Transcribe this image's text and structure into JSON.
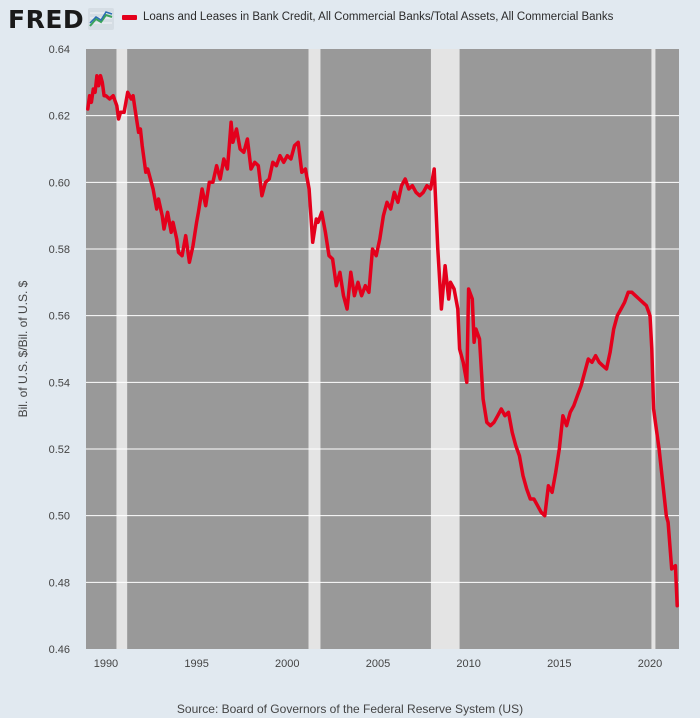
{
  "header": {
    "logo_text": "FRED",
    "logo_mark": "line-chart-icon"
  },
  "colors": {
    "series": "#e4001c",
    "plot_bg": "#999999",
    "recession": "#e4e4e4",
    "page_bg": "#e1e9f0"
  },
  "source": "Source: Board of Governors of the Federal Reserve System (US)",
  "chart_data": {
    "type": "line",
    "title": "",
    "ylabel": "Bil. of U.S. $/Bil. of U.S. $",
    "xlabel": "",
    "ylim": [
      0.46,
      0.64
    ],
    "xlim": [
      1988.9,
      2021.6
    ],
    "yticks": [
      "0.46",
      "0.48",
      "0.50",
      "0.52",
      "0.54",
      "0.56",
      "0.58",
      "0.60",
      "0.62",
      "0.64"
    ],
    "xticks": [
      "1990",
      "1995",
      "2000",
      "2005",
      "2010",
      "2015",
      "2020"
    ],
    "grid": true,
    "legend_position": "top",
    "recessions": [
      [
        1990.58,
        1991.17
      ],
      [
        2001.17,
        2001.83
      ],
      [
        2007.92,
        2009.5
      ],
      [
        2020.08,
        2020.3
      ]
    ],
    "series": [
      {
        "name": "Loans and Leases in Bank Credit, All Commercial Banks/Total Assets, All Commercial Banks",
        "x": [
          1989.0,
          1989.1,
          1989.2,
          1989.3,
          1989.4,
          1989.5,
          1989.6,
          1989.7,
          1989.8,
          1989.9,
          1990.0,
          1990.2,
          1990.4,
          1990.6,
          1990.7,
          1990.8,
          1991.0,
          1991.1,
          1991.2,
          1991.4,
          1991.5,
          1991.6,
          1991.8,
          1991.9,
          1992.0,
          1992.2,
          1992.3,
          1992.5,
          1992.6,
          1992.8,
          1992.9,
          1993.1,
          1993.2,
          1993.4,
          1993.6,
          1993.7,
          1993.9,
          1994.0,
          1994.2,
          1994.4,
          1994.6,
          1994.8,
          1995.0,
          1995.1,
          1995.3,
          1995.5,
          1995.7,
          1995.9,
          1996.1,
          1996.3,
          1996.5,
          1996.7,
          1996.8,
          1996.9,
          1997.0,
          1997.2,
          1997.4,
          1997.6,
          1997.8,
          1998.0,
          1998.2,
          1998.4,
          1998.6,
          1998.8,
          1999.0,
          1999.2,
          1999.4,
          1999.6,
          1999.8,
          2000.0,
          2000.2,
          2000.4,
          2000.6,
          2000.8,
          2001.0,
          2001.2,
          2001.4,
          2001.6,
          2001.7,
          2001.9,
          2002.1,
          2002.3,
          2002.5,
          2002.7,
          2002.9,
          2003.1,
          2003.3,
          2003.5,
          2003.7,
          2003.9,
          2004.1,
          2004.3,
          2004.5,
          2004.7,
          2004.9,
          2005.1,
          2005.3,
          2005.5,
          2005.7,
          2005.9,
          2006.1,
          2006.3,
          2006.5,
          2006.7,
          2006.9,
          2007.1,
          2007.3,
          2007.5,
          2007.7,
          2007.9,
          2008.1,
          2008.3,
          2008.5,
          2008.7,
          2008.9,
          2009.0,
          2009.2,
          2009.4,
          2009.5,
          2009.7,
          2009.9,
          2010.0,
          2010.2,
          2010.3,
          2010.4,
          2010.6,
          2010.8,
          2011.0,
          2011.2,
          2011.4,
          2011.6,
          2011.8,
          2012.0,
          2012.2,
          2012.4,
          2012.6,
          2012.8,
          2013.0,
          2013.2,
          2013.4,
          2013.6,
          2013.8,
          2014.0,
          2014.2,
          2014.4,
          2014.6,
          2014.8,
          2015.0,
          2015.2,
          2015.4,
          2015.6,
          2015.8,
          2016.0,
          2016.2,
          2016.4,
          2016.6,
          2016.8,
          2017.0,
          2017.2,
          2017.4,
          2017.6,
          2017.8,
          2018.0,
          2018.2,
          2018.4,
          2018.6,
          2018.8,
          2019.0,
          2019.2,
          2019.4,
          2019.6,
          2019.8,
          2020.0,
          2020.1,
          2020.2,
          2020.3,
          2020.5,
          2020.7,
          2020.9,
          2021.0,
          2021.2,
          2021.4,
          2021.5
        ],
        "values": [
          0.622,
          0.626,
          0.624,
          0.628,
          0.627,
          0.632,
          0.629,
          0.632,
          0.63,
          0.626,
          0.626,
          0.625,
          0.626,
          0.623,
          0.619,
          0.621,
          0.621,
          0.624,
          0.627,
          0.625,
          0.626,
          0.622,
          0.615,
          0.616,
          0.611,
          0.603,
          0.604,
          0.6,
          0.598,
          0.592,
          0.595,
          0.59,
          0.586,
          0.591,
          0.585,
          0.588,
          0.583,
          0.579,
          0.578,
          0.584,
          0.576,
          0.581,
          0.588,
          0.591,
          0.598,
          0.593,
          0.6,
          0.6,
          0.605,
          0.601,
          0.607,
          0.604,
          0.611,
          0.618,
          0.612,
          0.616,
          0.61,
          0.609,
          0.613,
          0.604,
          0.606,
          0.605,
          0.596,
          0.6,
          0.601,
          0.606,
          0.605,
          0.608,
          0.606,
          0.608,
          0.607,
          0.611,
          0.612,
          0.603,
          0.604,
          0.598,
          0.582,
          0.589,
          0.588,
          0.591,
          0.585,
          0.578,
          0.577,
          0.569,
          0.573,
          0.566,
          0.562,
          0.573,
          0.566,
          0.57,
          0.566,
          0.569,
          0.567,
          0.58,
          0.578,
          0.583,
          0.59,
          0.594,
          0.592,
          0.597,
          0.594,
          0.599,
          0.601,
          0.598,
          0.599,
          0.597,
          0.596,
          0.597,
          0.599,
          0.598,
          0.604,
          0.58,
          0.562,
          0.575,
          0.565,
          0.57,
          0.568,
          0.562,
          0.55,
          0.546,
          0.54,
          0.568,
          0.565,
          0.552,
          0.556,
          0.553,
          0.535,
          0.528,
          0.527,
          0.528,
          0.53,
          0.532,
          0.53,
          0.531,
          0.525,
          0.521,
          0.518,
          0.512,
          0.508,
          0.505,
          0.505,
          0.503,
          0.501,
          0.5,
          0.509,
          0.507,
          0.513,
          0.52,
          0.53,
          0.527,
          0.531,
          0.533,
          0.536,
          0.539,
          0.543,
          0.547,
          0.546,
          0.548,
          0.546,
          0.545,
          0.544,
          0.549,
          0.556,
          0.56,
          0.562,
          0.564,
          0.567,
          0.567,
          0.566,
          0.565,
          0.564,
          0.563,
          0.56,
          0.55,
          0.532,
          0.528,
          0.52,
          0.51,
          0.5,
          0.498,
          0.484,
          0.485,
          0.473
        ]
      }
    ]
  }
}
